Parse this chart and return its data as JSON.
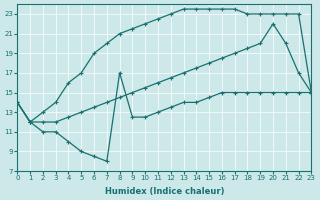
{
  "xlabel": "Humidex (Indice chaleur)",
  "xlim": [
    0,
    23
  ],
  "ylim": [
    7,
    24
  ],
  "xticks": [
    0,
    1,
    2,
    3,
    4,
    5,
    6,
    7,
    8,
    9,
    10,
    11,
    12,
    13,
    14,
    15,
    16,
    17,
    18,
    19,
    20,
    21,
    22,
    23
  ],
  "yticks": [
    7,
    9,
    11,
    13,
    15,
    17,
    19,
    21,
    23
  ],
  "bg_color": "#cce8e8",
  "grid_color": "#b0d4d4",
  "line_color": "#1a7070",
  "line1_x": [
    0,
    1,
    2,
    3,
    4,
    5,
    6,
    7,
    8,
    9,
    10,
    11,
    12,
    13,
    14,
    15,
    16,
    17,
    18,
    19,
    20,
    21,
    22,
    23
  ],
  "line1_y": [
    14,
    12,
    13,
    14,
    16,
    17,
    19,
    20,
    21,
    21.5,
    22,
    22.5,
    23,
    23.5,
    23.5,
    23.5,
    23.5,
    23.5,
    23,
    23,
    23,
    23,
    23,
    15
  ],
  "line2_x": [
    0,
    1,
    2,
    3,
    4,
    5,
    6,
    7,
    8,
    9,
    10,
    11,
    12,
    13,
    14,
    15,
    16,
    17,
    18,
    19,
    20,
    21,
    22,
    23
  ],
  "line2_y": [
    14,
    12,
    12,
    12,
    12.5,
    13,
    13.5,
    14,
    14.5,
    15,
    15.5,
    16,
    16.5,
    17,
    17.5,
    18,
    18.5,
    19,
    19.5,
    20,
    22,
    20,
    17,
    15
  ],
  "line3_x": [
    0,
    1,
    2,
    3,
    4,
    5,
    6,
    7,
    8,
    9,
    10,
    11,
    12,
    13,
    14,
    15,
    16,
    17,
    18,
    19,
    20,
    21,
    22,
    23
  ],
  "line3_y": [
    14,
    12,
    11,
    11,
    10,
    9,
    8.5,
    8,
    17,
    12.5,
    12.5,
    13,
    13.5,
    14,
    14,
    14.5,
    15,
    15,
    15,
    15,
    15,
    15,
    15,
    15
  ]
}
